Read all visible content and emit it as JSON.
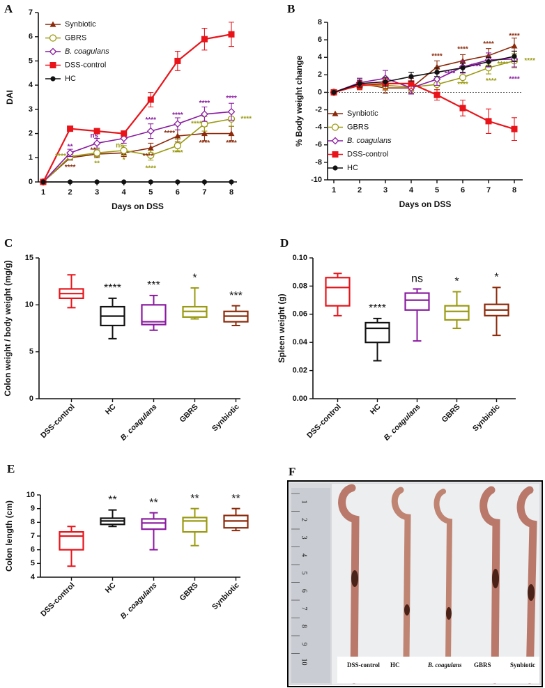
{
  "chart_data": [
    {
      "type": "line",
      "panel": "A",
      "y_label": "DAI",
      "x_label": "Days on DSS",
      "x": [
        1,
        2,
        3,
        4,
        5,
        6,
        7,
        8
      ],
      "ylim": [
        0,
        7
      ],
      "yticks": [
        0,
        1,
        2,
        3,
        4,
        5,
        6,
        7
      ],
      "legend": "upper left",
      "series": [
        {
          "name": "Synbiotic",
          "color": "#8b2a0a",
          "marker": "triangle",
          "values": [
            0,
            1.0,
            1.15,
            1.2,
            1.4,
            1.9,
            2.0,
            2.0
          ],
          "errors": [
            0,
            0.1,
            0.15,
            0.15,
            0.2,
            0.25,
            0.3,
            0.3
          ]
        },
        {
          "name": "GBRS",
          "color": "#9a9a12",
          "marker": "circle-open",
          "values": [
            0,
            1.05,
            1.2,
            1.3,
            1.1,
            1.5,
            2.4,
            2.6
          ],
          "errors": [
            0,
            0.1,
            0.15,
            0.2,
            0.2,
            0.25,
            0.3,
            0.3
          ]
        },
        {
          "name": "B. coagulans",
          "color": "#8a1aa0",
          "marker": "diamond-open",
          "values": [
            0,
            1.2,
            1.6,
            1.8,
            2.1,
            2.4,
            2.8,
            2.9
          ],
          "errors": [
            0,
            0.15,
            0.2,
            0.2,
            0.3,
            0.25,
            0.3,
            0.35
          ]
        },
        {
          "name": "DSS-control",
          "color": "#e8141a",
          "marker": "square",
          "values": [
            0,
            2.2,
            2.1,
            2.0,
            3.4,
            5.0,
            5.9,
            6.1
          ],
          "errors": [
            0,
            0.1,
            0.08,
            0.1,
            0.3,
            0.4,
            0.45,
            0.5
          ]
        },
        {
          "name": "HC",
          "color": "#111111",
          "marker": "circle",
          "values": [
            0,
            0,
            0,
            0,
            0,
            0,
            0,
            0
          ],
          "errors": [
            0,
            0,
            0,
            0,
            0,
            0,
            0,
            0
          ]
        }
      ],
      "annotations": [
        {
          "text": "**",
          "x": 2,
          "y": 1.45,
          "color": "#8a1aa0"
        },
        {
          "text": "ns",
          "x": 2.9,
          "y": 1.9,
          "color": "#8a1aa0"
        },
        {
          "text": "****",
          "x": 5,
          "y": 2.55,
          "color": "#8a1aa0"
        },
        {
          "text": "****",
          "x": 6,
          "y": 2.75,
          "color": "#8a1aa0"
        },
        {
          "text": "****",
          "x": 7,
          "y": 3.25,
          "color": "#8a1aa0"
        },
        {
          "text": "****",
          "x": 8,
          "y": 3.45,
          "color": "#8a1aa0"
        },
        {
          "text": "****",
          "x": 1.65,
          "y": 1.05,
          "color": "#9a9a12"
        },
        {
          "text": "**",
          "x": 3,
          "y": 0.75,
          "color": "#9a9a12"
        },
        {
          "text": "ns",
          "x": 3.85,
          "y": 1.5,
          "color": "#9a9a12"
        },
        {
          "text": "*",
          "x": 4,
          "y": 0.9,
          "color": "#9a9a12"
        },
        {
          "text": "****",
          "x": 5,
          "y": 0.55,
          "color": "#9a9a12"
        },
        {
          "text": "****",
          "x": 6,
          "y": 1.2,
          "color": "#9a9a12"
        },
        {
          "text": "****",
          "x": 6.7,
          "y": 2.4,
          "color": "#9a9a12"
        },
        {
          "text": "****",
          "x": 8.55,
          "y": 2.6,
          "color": "#9a9a12"
        },
        {
          "text": "****",
          "x": 2,
          "y": 0.6,
          "color": "#8b2a0a"
        },
        {
          "text": "**",
          "x": 2.85,
          "y": 1.3,
          "color": "#8b2a0a"
        },
        {
          "text": "****",
          "x": 4.9,
          "y": 1.05,
          "color": "#8b2a0a"
        },
        {
          "text": "****",
          "x": 5.7,
          "y": 2.0,
          "color": "#8b2a0a"
        },
        {
          "text": "****",
          "x": 7,
          "y": 1.6,
          "color": "#8b2a0a"
        },
        {
          "text": "****",
          "x": 8,
          "y": 1.6,
          "color": "#8b2a0a"
        }
      ]
    },
    {
      "type": "line",
      "panel": "B",
      "y_label": "% Body weight change",
      "x_label": "Days on DSS",
      "x": [
        1,
        2,
        3,
        4,
        5,
        6,
        7,
        8
      ],
      "ylim": [
        -10,
        8
      ],
      "yticks": [
        -10,
        -8,
        -6,
        -4,
        -2,
        0,
        2,
        4,
        6,
        8
      ],
      "reference_line": 0,
      "legend": "lower left",
      "series": [
        {
          "name": "Synbiotic",
          "color": "#8b2a0a",
          "marker": "triangle",
          "values": [
            0,
            1.0,
            0.5,
            0.5,
            2.9,
            3.6,
            4.2,
            5.3
          ],
          "errors": [
            0,
            0.6,
            0.6,
            0.6,
            0.7,
            0.7,
            0.8,
            0.9
          ]
        },
        {
          "name": "GBRS",
          "color": "#9a9a12",
          "marker": "circle-open",
          "values": [
            0,
            0.8,
            0.8,
            0.6,
            0.9,
            1.7,
            2.8,
            3.6
          ],
          "errors": [
            0,
            0.5,
            0.5,
            0.5,
            0.6,
            0.6,
            0.7,
            0.8
          ]
        },
        {
          "name": "B. coagulans",
          "color": "#8a1aa0",
          "marker": "diamond-open",
          "values": [
            0,
            1.1,
            1.6,
            0.5,
            1.5,
            2.9,
            3.7,
            3.8
          ],
          "errors": [
            0,
            0.5,
            0.9,
            0.7,
            0.7,
            0.7,
            0.8,
            0.9
          ]
        },
        {
          "name": "DSS-control",
          "color": "#e8141a",
          "marker": "square",
          "values": [
            0,
            0.8,
            1.0,
            1.0,
            -0.3,
            -1.8,
            -3.3,
            -4.2
          ],
          "errors": [
            0,
            0.5,
            0.6,
            0.6,
            0.6,
            0.9,
            1.4,
            1.3
          ]
        },
        {
          "name": "HC",
          "color": "#111111",
          "marker": "circle",
          "values": [
            0,
            1.0,
            1.2,
            1.8,
            2.3,
            2.8,
            3.5,
            4.1
          ],
          "errors": [
            0,
            0.4,
            0.5,
            0.5,
            0.5,
            0.5,
            0.5,
            0.6
          ]
        }
      ],
      "annotations": [
        {
          "text": "****",
          "x": 5,
          "y": 4.1,
          "color": "#8b2a0a"
        },
        {
          "text": "****",
          "x": 6,
          "y": 4.9,
          "color": "#8b2a0a"
        },
        {
          "text": "****",
          "x": 7,
          "y": 5.5,
          "color": "#8b2a0a"
        },
        {
          "text": "****",
          "x": 8,
          "y": 6.4,
          "color": "#8b2a0a"
        },
        {
          "text": "****",
          "x": 5.5,
          "y": 2.1,
          "color": "#8a1aa0"
        },
        {
          "text": "****",
          "x": 6.5,
          "y": 2.9,
          "color": "#8a1aa0"
        },
        {
          "text": "****",
          "x": 8,
          "y": 1.5,
          "color": "#8a1aa0"
        },
        {
          "text": "****",
          "x": 6,
          "y": 0.9,
          "color": "#9a9a12"
        },
        {
          "text": "****",
          "x": 7.1,
          "y": 1.3,
          "color": "#9a9a12"
        },
        {
          "text": "****",
          "x": 7.55,
          "y": 3.2,
          "color": "#9a9a12"
        },
        {
          "text": "****",
          "x": 8.6,
          "y": 3.6,
          "color": "#9a9a12"
        }
      ]
    },
    {
      "type": "box",
      "panel": "C",
      "y_label": "Colon weight / body weight (mg/g)",
      "categories": [
        "DSS-control",
        "HC",
        "B. coagulans",
        "GBRS",
        "Synbiotic"
      ],
      "colors": [
        "#e8141a",
        "#111111",
        "#8a1aa0",
        "#9a9a12",
        "#8b2a0a"
      ],
      "ylim": [
        0,
        15
      ],
      "yticks": [
        0,
        5,
        10,
        15
      ],
      "boxes": [
        {
          "min": 9.7,
          "q1": 10.7,
          "median": 11.2,
          "q3": 11.7,
          "max": 13.2
        },
        {
          "min": 6.4,
          "q1": 7.8,
          "median": 8.8,
          "q3": 9.8,
          "max": 10.7
        },
        {
          "min": 7.3,
          "q1": 7.9,
          "median": 8.2,
          "q3": 10.0,
          "max": 11.0
        },
        {
          "min": 8.5,
          "q1": 8.7,
          "median": 9.3,
          "q3": 9.8,
          "max": 11.8
        },
        {
          "min": 7.8,
          "q1": 8.2,
          "median": 8.8,
          "q3": 9.3,
          "max": 9.9
        }
      ],
      "significance": [
        null,
        "****",
        "***",
        "*",
        "***"
      ]
    },
    {
      "type": "box",
      "panel": "D",
      "y_label": "Spleen weight (g)",
      "categories": [
        "DSS-control",
        "HC",
        "B. coagulans",
        "GBRS",
        "Synbiotic"
      ],
      "colors": [
        "#e8141a",
        "#111111",
        "#8a1aa0",
        "#9a9a12",
        "#8b2a0a"
      ],
      "ylim": [
        0,
        0.1
      ],
      "yticks": [
        {
          "value": 0,
          "label": "0.00"
        },
        {
          "value": 0.02,
          "label": "0.02"
        },
        {
          "value": 0.04,
          "label": "0.04"
        },
        {
          "value": 0.06,
          "label": "0.06"
        },
        {
          "value": 0.08,
          "label": "0.08"
        },
        {
          "value": 0.1,
          "label": "0.10"
        }
      ],
      "boxes": [
        {
          "min": 0.059,
          "q1": 0.066,
          "median": 0.079,
          "q3": 0.086,
          "max": 0.089
        },
        {
          "min": 0.027,
          "q1": 0.04,
          "median": 0.05,
          "q3": 0.054,
          "max": 0.057
        },
        {
          "min": 0.041,
          "q1": 0.063,
          "median": 0.07,
          "q3": 0.075,
          "max": 0.078
        },
        {
          "min": 0.05,
          "q1": 0.056,
          "median": 0.062,
          "q3": 0.066,
          "max": 0.076
        },
        {
          "min": 0.045,
          "q1": 0.059,
          "median": 0.063,
          "q3": 0.067,
          "max": 0.079
        }
      ],
      "significance": [
        null,
        "****",
        "ns",
        "*",
        "*"
      ]
    },
    {
      "type": "box",
      "panel": "E",
      "y_label": "Colon length (cm)",
      "categories": [
        "DSS-control",
        "HC",
        "B. coagulans",
        "GBRS",
        "Synbiotic"
      ],
      "colors": [
        "#e8141a",
        "#111111",
        "#8a1aa0",
        "#9a9a12",
        "#8b2a0a"
      ],
      "ylim": [
        4,
        10
      ],
      "yticks": [
        4,
        5,
        6,
        7,
        8,
        9,
        10
      ],
      "boxes": [
        {
          "min": 4.8,
          "q1": 6.0,
          "median": 7.0,
          "q3": 7.3,
          "max": 7.7
        },
        {
          "min": 7.7,
          "q1": 7.85,
          "median": 8.1,
          "q3": 8.3,
          "max": 8.9
        },
        {
          "min": 6.0,
          "q1": 7.5,
          "median": 7.95,
          "q3": 8.25,
          "max": 8.7
        },
        {
          "min": 6.3,
          "q1": 7.3,
          "median": 8.1,
          "q3": 8.35,
          "max": 9.0
        },
        {
          "min": 7.4,
          "q1": 7.6,
          "median": 8.1,
          "q3": 8.5,
          "max": 9.0
        }
      ],
      "significance": [
        null,
        "**",
        "**",
        "**",
        "**"
      ]
    }
  ],
  "photo": {
    "panel": "F",
    "labels": [
      "DSS-control",
      "HC",
      "B. coagulans",
      "GBRS",
      "Synbiotic"
    ],
    "ruler": [
      "1",
      "2",
      "3",
      "4",
      "5",
      "6",
      "7",
      "8",
      "9",
      "10"
    ]
  }
}
